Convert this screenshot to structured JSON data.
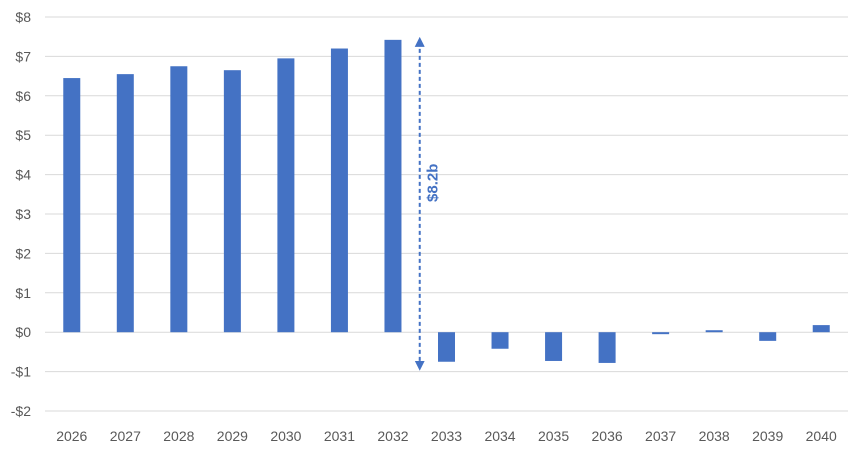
{
  "chart_data": {
    "type": "bar",
    "categories": [
      "2026",
      "2027",
      "2028",
      "2029",
      "2030",
      "2031",
      "2032",
      "2033",
      "2034",
      "2035",
      "2036",
      "2037",
      "2038",
      "2039",
      "2040"
    ],
    "values": [
      6.45,
      6.55,
      6.75,
      6.65,
      6.95,
      7.2,
      7.42,
      -0.75,
      -0.42,
      -0.73,
      -0.78,
      -0.05,
      0.05,
      -0.22,
      0.18
    ],
    "title": "",
    "xlabel": "",
    "ylabel": "",
    "ylim": [
      -2,
      8
    ],
    "y_ticks": [
      {
        "value": 8,
        "label": "$8"
      },
      {
        "value": 7,
        "label": "$7"
      },
      {
        "value": 6,
        "label": "$6"
      },
      {
        "value": 5,
        "label": "$5"
      },
      {
        "value": 4,
        "label": "$4"
      },
      {
        "value": 3,
        "label": "$3"
      },
      {
        "value": 2,
        "label": "$2"
      },
      {
        "value": 1,
        "label": "$1"
      },
      {
        "value": 0,
        "label": "$0"
      },
      {
        "value": -1,
        "label": "-$1"
      },
      {
        "value": -2,
        "label": "-$2"
      }
    ],
    "grid": true,
    "bar_color": "#4472C4",
    "annotation": {
      "label": "$8.2b",
      "from_value": 7.42,
      "to_value": -0.75,
      "between_categories": [
        "2032",
        "2033"
      ],
      "color": "#4472C4"
    }
  }
}
